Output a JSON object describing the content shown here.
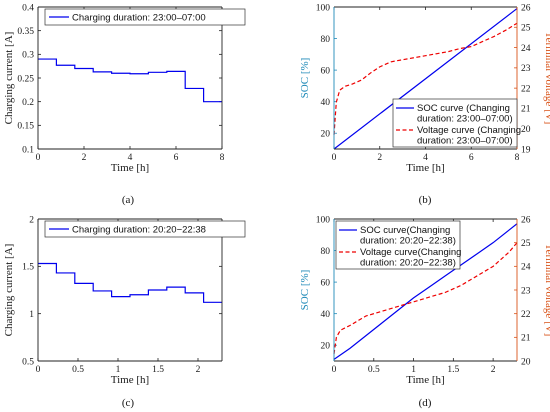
{
  "colors": {
    "blue": "#0000ee",
    "red": "#ee0000",
    "left_axis_teal": "#1f8ab8",
    "right_axis_orange": "#d95319",
    "axis": "#222222",
    "grid": "#dddddd"
  },
  "chart_data": [
    {
      "id": "a",
      "type": "line",
      "subcaption": "(a)",
      "xlabel": "Time [h]",
      "ylabel": "Charging current [A]",
      "xlim": [
        0,
        8
      ],
      "ylim": [
        0.1,
        0.4
      ],
      "xticks": [
        0,
        2,
        4,
        6,
        8
      ],
      "yticks": [
        0.1,
        0.15,
        0.2,
        0.25,
        0.3,
        0.35,
        0.4
      ],
      "legend_position": "top-left",
      "series": [
        {
          "name": "Charging duration: 23:00–07:00",
          "color": "#0000ee",
          "style": "step",
          "x": [
            0,
            0.8,
            1.6,
            2.4,
            3.2,
            4.0,
            4.8,
            5.6,
            6.4,
            7.2,
            8.0
          ],
          "y": [
            0.29,
            0.277,
            0.27,
            0.263,
            0.26,
            0.259,
            0.262,
            0.264,
            0.228,
            0.2,
            0.2
          ]
        }
      ]
    },
    {
      "id": "b",
      "type": "line",
      "subcaption": "(b)",
      "xlabel": "Time [h]",
      "ylabel": "SOC [%]",
      "ylabel_right": "Terminal voltage [V]",
      "xlim": [
        0,
        8
      ],
      "ylim": [
        10,
        100
      ],
      "ylim_right": [
        19,
        26
      ],
      "xticks": [
        0,
        2,
        4,
        6,
        8
      ],
      "yticks": [
        20,
        40,
        60,
        80,
        100
      ],
      "yticks_right": [
        19,
        20,
        21,
        22,
        23,
        24,
        25,
        26
      ],
      "legend_position": "bottom-right",
      "series": [
        {
          "name": "SOC curve (Changing duration: 23:00–07:00)",
          "axis": "left",
          "color": "#0000ee",
          "style": "solid",
          "x": [
            0,
            8
          ],
          "y": [
            10,
            99
          ]
        },
        {
          "name": "Voltage curve (Changing duration: 23:00–07:00)",
          "axis": "right",
          "color": "#ee0000",
          "style": "dashed",
          "x": [
            0,
            0.1,
            0.25,
            0.5,
            0.8,
            1.2,
            1.6,
            2.0,
            2.5,
            3.0,
            3.5,
            4.0,
            4.5,
            5.0,
            5.5,
            6.0,
            6.5,
            7.0,
            7.5,
            8.0
          ],
          "y": [
            19.7,
            21.3,
            21.9,
            22.1,
            22.2,
            22.4,
            22.75,
            23.05,
            23.3,
            23.4,
            23.5,
            23.6,
            23.7,
            23.8,
            23.95,
            24.05,
            24.3,
            24.55,
            24.85,
            25.2
          ]
        }
      ]
    },
    {
      "id": "c",
      "type": "line",
      "subcaption": "(c)",
      "xlabel": "Time [h]",
      "ylabel": "Charging current [A]",
      "xlim": [
        0,
        2.3
      ],
      "ylim": [
        0.5,
        2
      ],
      "xticks": [
        0,
        0.5,
        1,
        1.5,
        2
      ],
      "yticks": [
        0.5,
        1,
        1.5,
        2
      ],
      "legend_position": "top-left",
      "series": [
        {
          "name": "Charging duration: 20:20−22:38",
          "color": "#0000ee",
          "style": "step",
          "x": [
            0,
            0.23,
            0.46,
            0.69,
            0.92,
            1.15,
            1.38,
            1.61,
            1.84,
            2.07,
            2.3
          ],
          "y": [
            1.53,
            1.43,
            1.32,
            1.24,
            1.18,
            1.2,
            1.25,
            1.28,
            1.22,
            1.12,
            1.12
          ]
        }
      ]
    },
    {
      "id": "d",
      "type": "line",
      "subcaption": "(d)",
      "xlabel": "Time [h]",
      "ylabel": "SOC [%]",
      "ylabel_right": "Terminal voltage [V]",
      "xlim": [
        0,
        2.3
      ],
      "ylim": [
        10,
        100
      ],
      "ylim_right": [
        20,
        26
      ],
      "xticks": [
        0,
        0.5,
        1,
        1.5,
        2
      ],
      "yticks": [
        20,
        40,
        60,
        80,
        100
      ],
      "yticks_right": [
        20,
        21,
        22,
        23,
        24,
        25,
        26
      ],
      "legend_position": "top-left",
      "series": [
        {
          "name": "SOC curve(Changing duration: 20:20−22:38)",
          "axis": "left",
          "color": "#0000ee",
          "style": "solid",
          "x": [
            0,
            0.2,
            0.4,
            0.6,
            0.8,
            1.0,
            1.2,
            1.4,
            1.6,
            1.8,
            2.0,
            2.2,
            2.3
          ],
          "y": [
            11,
            18,
            26,
            34,
            42,
            50,
            57,
            64,
            71,
            78,
            85,
            93,
            97
          ]
        },
        {
          "name": "Voltage curve(Changing duration: 20:20−22:38)",
          "axis": "right",
          "color": "#ee0000",
          "style": "dashed",
          "x": [
            0,
            0.03,
            0.08,
            0.2,
            0.4,
            0.6,
            0.8,
            1.0,
            1.2,
            1.4,
            1.6,
            1.8,
            2.0,
            2.2,
            2.3
          ],
          "y": [
            20.3,
            21.0,
            21.3,
            21.5,
            21.9,
            22.1,
            22.3,
            22.5,
            22.7,
            22.9,
            23.2,
            23.6,
            24.0,
            24.6,
            25.0
          ]
        }
      ]
    }
  ]
}
